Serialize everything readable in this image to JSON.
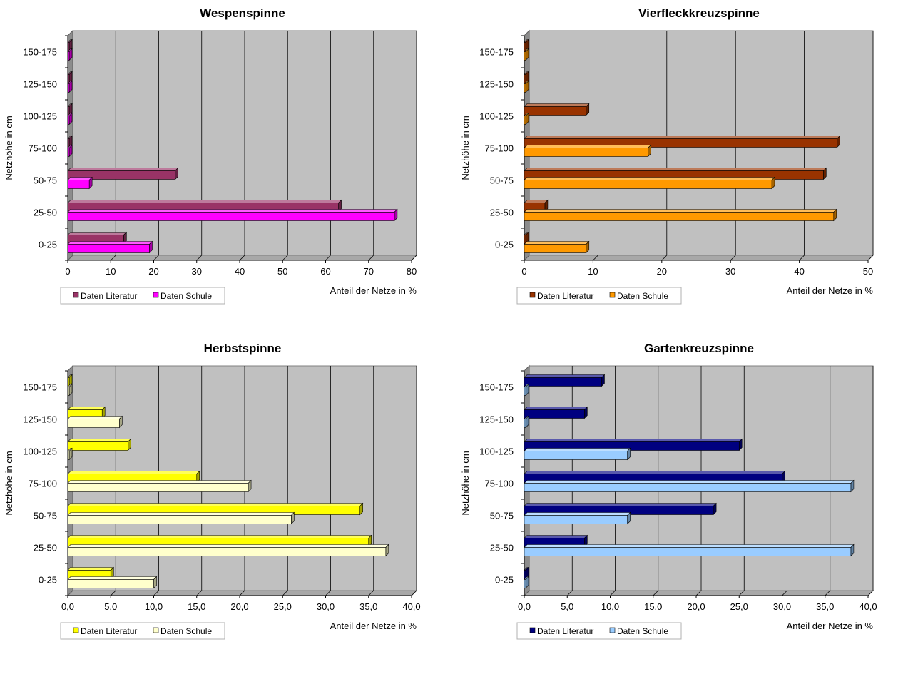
{
  "chart_data": [
    {
      "type": "bar",
      "orientation": "horizontal",
      "title": "Wespenspinne",
      "xlabel": "Anteil der Netze in %",
      "ylabel": "Netzhöhe in cm",
      "categories": [
        "0-25",
        "25-50",
        "50-75",
        "75-100",
        "100-125",
        "125-150",
        "150-175"
      ],
      "xlim": [
        0,
        80
      ],
      "xticks": [
        "0",
        "10",
        "20",
        "30",
        "40",
        "50",
        "60",
        "70",
        "80"
      ],
      "series": [
        {
          "name": "Daten Literatur",
          "color": "#993366",
          "values": [
            13,
            63,
            25,
            0,
            0,
            0,
            0
          ]
        },
        {
          "name": "Daten Schule",
          "color": "#ff00ff",
          "values": [
            19,
            76,
            5,
            0,
            0,
            0,
            0
          ]
        }
      ],
      "legend": "bottom-left",
      "grid": true
    },
    {
      "type": "bar",
      "orientation": "horizontal",
      "title": "Vierfleckkreuzspinne",
      "xlabel": "Anteil der Netze in %",
      "ylabel": "Netzhöhe in cm",
      "categories": [
        "0-25",
        "25-50",
        "50-75",
        "75-100",
        "100-125",
        "125-150",
        "150-175"
      ],
      "xlim": [
        0,
        50
      ],
      "xticks": [
        "0",
        "10",
        "20",
        "30",
        "40",
        "50"
      ],
      "series": [
        {
          "name": "Daten Literatur",
          "color": "#993300",
          "values": [
            0,
            3,
            43.5,
            45.5,
            9,
            0,
            0
          ]
        },
        {
          "name": "Daten Schule",
          "color": "#ff9900",
          "values": [
            9,
            45,
            36,
            18,
            0,
            0,
            0
          ]
        }
      ],
      "legend": "bottom-left",
      "grid": true
    },
    {
      "type": "bar",
      "orientation": "horizontal",
      "title": "Herbstspinne",
      "xlabel": "Anteil der Netze in %",
      "ylabel": "Netzhöhe in cm",
      "categories": [
        "0-25",
        "25-50",
        "50-75",
        "75-100",
        "100-125",
        "125-150",
        "150-175"
      ],
      "xlim": [
        0,
        40
      ],
      "xticks": [
        "0,0",
        "5,0",
        "10,0",
        "15,0",
        "20,0",
        "25,0",
        "30,0",
        "35,0",
        "40,0"
      ],
      "series": [
        {
          "name": "Daten Literatur",
          "color": "#ffff00",
          "values": [
            5,
            35,
            34,
            15,
            7,
            4,
            0
          ]
        },
        {
          "name": "Daten Schule",
          "color": "#ffffcc",
          "values": [
            10,
            37,
            26,
            21,
            0,
            6,
            0
          ]
        }
      ],
      "legend": "bottom-left",
      "grid": true
    },
    {
      "type": "bar",
      "orientation": "horizontal",
      "title": "Gartenkreuzspinne",
      "xlabel": "Anteil der Netze in %",
      "ylabel": "Netzhöhe in cm",
      "categories": [
        "0-25",
        "25-50",
        "50-75",
        "75-100",
        "100-125",
        "125-150",
        "150-175"
      ],
      "xlim": [
        0,
        40
      ],
      "xticks": [
        "0,0",
        "5,0",
        "10,0",
        "15,0",
        "20,0",
        "25,0",
        "30,0",
        "35,0",
        "40,0"
      ],
      "series": [
        {
          "name": "Daten Literatur",
          "color": "#000080",
          "values": [
            0,
            7,
            22,
            30,
            25,
            7,
            9
          ]
        },
        {
          "name": "Daten Schule",
          "color": "#99ccff",
          "values": [
            0,
            38,
            12,
            38,
            12,
            0,
            0
          ]
        }
      ],
      "legend": "bottom-left",
      "grid": true
    }
  ]
}
